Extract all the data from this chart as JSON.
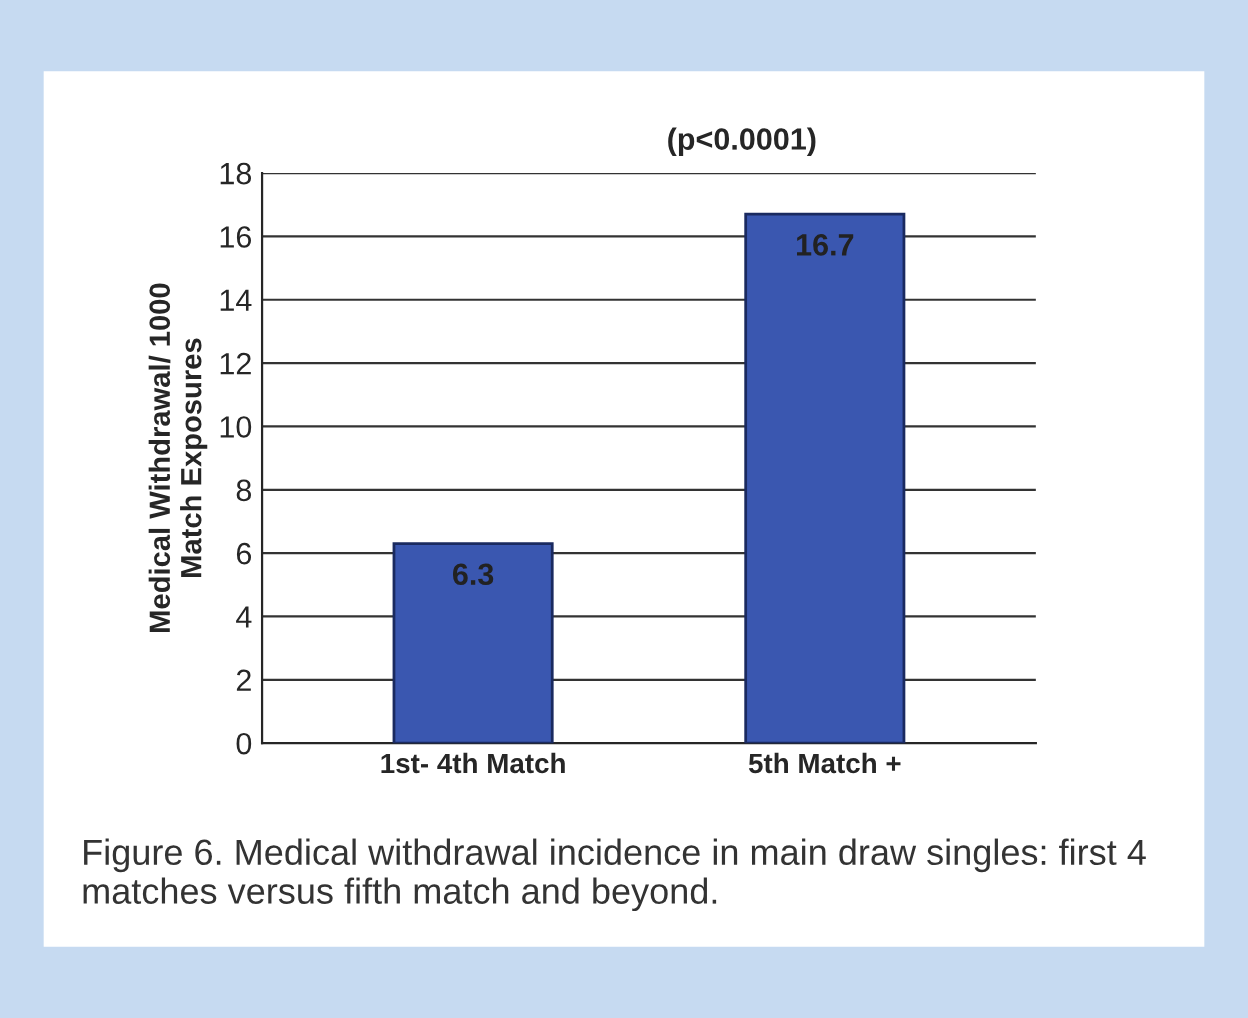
{
  "chart_data": {
    "type": "bar",
    "ylabel": "Medical Withdrawal/ 1000\nMatch Exposures",
    "categories": [
      "1st- 4th Match",
      "5th Match +"
    ],
    "values": [
      6.3,
      16.7
    ],
    "color": "#3a57b0",
    "ylim": [
      0,
      18
    ],
    "yticks": [
      0,
      2,
      4,
      6,
      8,
      10,
      12,
      14,
      16,
      18
    ],
    "grid": "y",
    "data_labels": true,
    "annotations": [
      "(p<0.0001)",
      "Figure 6. Medical withdrawal incidence in main draw singles: first 4 matches versus fifth match and beyond."
    ]
  }
}
